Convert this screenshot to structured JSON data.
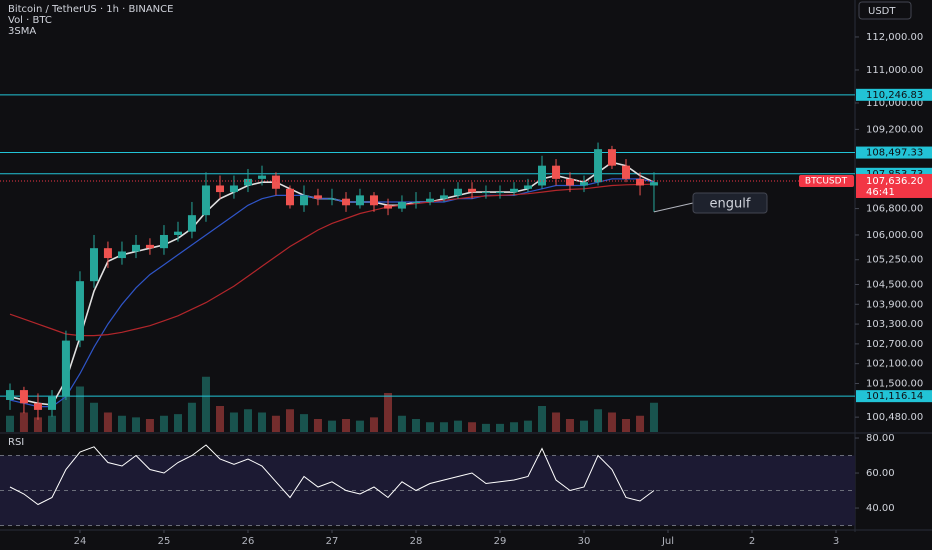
{
  "header": {
    "title": "Bitcoin / TetherUS · 1h · BINANCE",
    "volume_label": "Vol · BTC",
    "indicator_label": "3SMA",
    "currency_button": "USDT"
  },
  "chart_data": [
    {
      "type": "candlestick",
      "x": [
        23.167,
        23.333,
        23.5,
        23.667,
        23.833,
        24.0,
        24.167,
        24.333,
        24.5,
        24.667,
        24.833,
        25.0,
        25.167,
        25.333,
        25.5,
        25.667,
        25.833,
        26.0,
        26.167,
        26.333,
        26.5,
        26.667,
        26.833,
        27.0,
        27.167,
        27.333,
        27.5,
        27.667,
        27.833,
        28.0,
        28.167,
        28.333,
        28.5,
        28.667,
        28.833,
        29.0,
        29.167,
        29.333,
        29.5,
        29.667,
        29.833,
        30.0,
        30.167,
        30.333,
        30.5,
        30.667,
        30.833
      ],
      "open": [
        101000,
        101300,
        100900,
        100700,
        101100,
        102800,
        104600,
        105600,
        105300,
        105500,
        105700,
        105600,
        106000,
        106100,
        106600,
        107500,
        107300,
        107500,
        107700,
        107800,
        107400,
        106900,
        107200,
        107100,
        107100,
        106900,
        107200,
        106900,
        106800,
        107000,
        107000,
        107100,
        107200,
        107400,
        107300,
        107300,
        107300,
        107400,
        107500,
        108100,
        107700,
        107500,
        107600,
        108600,
        108100,
        107700,
        107500
      ],
      "high": [
        101500,
        101400,
        101200,
        101300,
        103100,
        104900,
        106000,
        105800,
        105800,
        106000,
        105900,
        106300,
        106400,
        107000,
        107900,
        107800,
        107800,
        108000,
        108100,
        107900,
        107500,
        107500,
        107400,
        107400,
        107300,
        107400,
        107300,
        107100,
        107200,
        107300,
        107300,
        107400,
        107600,
        107600,
        107500,
        107500,
        107600,
        107700,
        108400,
        108300,
        107900,
        107800,
        108800,
        108700,
        108300,
        107900,
        107900
      ],
      "low": [
        100700,
        100600,
        100400,
        100500,
        101000,
        102600,
        104400,
        105000,
        105100,
        105300,
        105400,
        105400,
        105800,
        105900,
        106400,
        107100,
        107100,
        107300,
        107500,
        107200,
        106800,
        106700,
        106900,
        106900,
        106700,
        106800,
        106700,
        106600,
        106700,
        106800,
        106900,
        107000,
        107100,
        107100,
        107100,
        107100,
        107200,
        107300,
        107400,
        107500,
        107300,
        107300,
        107500,
        108000,
        107600,
        107200,
        106700
      ],
      "close": [
        101300,
        100900,
        100700,
        101100,
        102800,
        104600,
        105600,
        105300,
        105500,
        105700,
        105600,
        106000,
        106100,
        106600,
        107500,
        107300,
        107500,
        107700,
        107800,
        107400,
        106900,
        107200,
        107100,
        107100,
        106900,
        107200,
        106900,
        106800,
        107000,
        107000,
        107100,
        107200,
        107400,
        107300,
        107300,
        107300,
        107400,
        107500,
        108100,
        107700,
        107500,
        107600,
        108600,
        108100,
        107700,
        107500,
        107600
      ],
      "volume": [
        5000,
        6000,
        4500,
        5000,
        22000,
        14000,
        9000,
        6000,
        5000,
        4500,
        4000,
        5000,
        5500,
        9000,
        17000,
        8000,
        6000,
        7000,
        6000,
        5000,
        7000,
        5500,
        4000,
        3500,
        4000,
        3500,
        4500,
        12000,
        5000,
        4000,
        3000,
        3000,
        3500,
        3000,
        2500,
        2500,
        3000,
        3500,
        8000,
        6000,
        4000,
        3500,
        7000,
        6000,
        4000,
        5000,
        9000
      ],
      "volume_lim": [
        0,
        40000
      ],
      "up_color": "#26a69a",
      "down_color": "#ef5350",
      "series": [
        {
          "color": "#e0e0e0",
          "values": [
            101100,
            101000,
            100900,
            100850,
            101600,
            102900,
            104300,
            105200,
            105400,
            105500,
            105600,
            105700,
            105900,
            106200,
            106700,
            107100,
            107300,
            107500,
            107600,
            107600,
            107400,
            107200,
            107100,
            107100,
            107000,
            107000,
            107000,
            106900,
            106900,
            107000,
            107000,
            107100,
            107200,
            107300,
            107300,
            107300,
            107300,
            107400,
            107700,
            107800,
            107700,
            107600,
            107900,
            108200,
            108100,
            107800,
            107600
          ]
        },
        {
          "color": "#2f55c8",
          "values": [
            101000,
            100900,
            100800,
            100800,
            101100,
            101800,
            102600,
            103300,
            103900,
            104400,
            104800,
            105100,
            105400,
            105700,
            106000,
            106300,
            106600,
            106900,
            107100,
            107200,
            107200,
            107200,
            107100,
            107100,
            107000,
            107000,
            107000,
            107000,
            107000,
            107000,
            107000,
            107000,
            107100,
            107100,
            107200,
            107200,
            107200,
            107300,
            107400,
            107500,
            107500,
            107500,
            107600,
            107700,
            107700,
            107700,
            107600
          ]
        },
        {
          "color": "#b2262b",
          "values": [
            103600,
            103450,
            103300,
            103150,
            103000,
            102950,
            102950,
            102980,
            103050,
            103150,
            103250,
            103400,
            103550,
            103750,
            103950,
            104200,
            104450,
            104750,
            105050,
            105350,
            105650,
            105900,
            106150,
            106350,
            106500,
            106650,
            106750,
            106850,
            106900,
            106950,
            107000,
            107050,
            107100,
            107150,
            107180,
            107200,
            107220,
            107250,
            107300,
            107350,
            107380,
            107400,
            107450,
            107500,
            107520,
            107530,
            107540
          ]
        }
      ],
      "levels": [
        {
          "value": 110246.83,
          "label": "110,246.83"
        },
        {
          "value": 108497.33,
          "label": "108,497.33"
        },
        {
          "value": 107853.73,
          "label": "107,853.73"
        },
        {
          "value": 101116.14,
          "label": "101,116.14"
        }
      ],
      "level_color": "#22c3d6",
      "current": {
        "value": 107636.2,
        "label": "107,636.20",
        "symbol": "BTCUSDT",
        "countdown": "46:41",
        "color": "#f23645"
      },
      "annotation": "engulf",
      "xlim": [
        23.048,
        33.226
      ],
      "ylim": [
        100030,
        113120
      ],
      "yticks": [
        {
          "value": 112000,
          "label": "112,000.00"
        },
        {
          "value": 111000,
          "label": "111,000.00"
        },
        {
          "value": 110000,
          "label": "110,000.00"
        },
        {
          "value": 109200,
          "label": "109,200.00"
        },
        {
          "value": 106800,
          "label": "106,800.00"
        },
        {
          "value": 106000,
          "label": "106,000.00"
        },
        {
          "value": 105250,
          "label": "105,250.00"
        },
        {
          "value": 104500,
          "label": "104,500.00"
        },
        {
          "value": 103900,
          "label": "103,900.00"
        },
        {
          "value": 103300,
          "label": "103,300.00"
        },
        {
          "value": 102700,
          "label": "102,700.00"
        },
        {
          "value": 102100,
          "label": "102,100.00"
        },
        {
          "value": 101500,
          "label": "101,500.00"
        },
        {
          "value": 100480,
          "label": "100,480.00"
        }
      ]
    },
    {
      "type": "line",
      "title": "RSI",
      "x": [
        23.167,
        23.333,
        23.5,
        23.667,
        23.833,
        24.0,
        24.167,
        24.333,
        24.5,
        24.667,
        24.833,
        25.0,
        25.167,
        25.333,
        25.5,
        25.667,
        25.833,
        26.0,
        26.167,
        26.333,
        26.5,
        26.667,
        26.833,
        27.0,
        27.167,
        27.333,
        27.5,
        27.667,
        27.833,
        28.0,
        28.167,
        28.333,
        28.5,
        28.667,
        28.833,
        29.0,
        29.167,
        29.333,
        29.5,
        29.667,
        29.833,
        30.0,
        30.167,
        30.333,
        30.5,
        30.667,
        30.833
      ],
      "values": [
        52,
        48,
        42,
        46,
        62,
        72,
        75,
        66,
        64,
        70,
        62,
        60,
        66,
        70,
        76,
        68,
        65,
        68,
        64,
        55,
        46,
        58,
        52,
        55,
        50,
        48,
        52,
        46,
        55,
        50,
        54,
        56,
        58,
        60,
        54,
        55,
        56,
        58,
        74,
        56,
        50,
        52,
        70,
        62,
        46,
        44,
        50
      ],
      "color": "#ffffff",
      "levels": [
        70,
        50,
        30
      ],
      "band_color": "#1c1a33",
      "xlim": [
        23.048,
        33.226
      ],
      "ylim": [
        28.6,
        82.3
      ],
      "yticks": [
        {
          "value": 80,
          "label": "80.00"
        },
        {
          "value": 60,
          "label": "60.00"
        },
        {
          "value": 40,
          "label": "40.00"
        }
      ],
      "xticks": [
        24,
        25,
        26,
        27,
        28,
        29,
        30,
        {
          "value": 31,
          "label": "Jul"
        },
        {
          "value": 32,
          "label": "2"
        },
        {
          "value": 33,
          "label": "3"
        }
      ]
    }
  ]
}
